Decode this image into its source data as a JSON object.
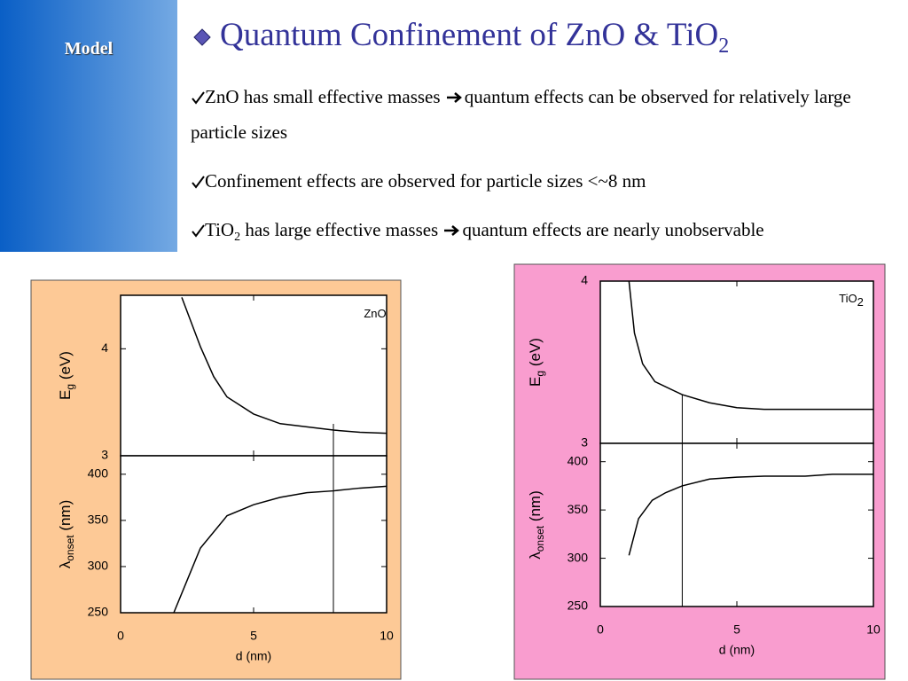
{
  "sidebar": {
    "label": "Model"
  },
  "header": {
    "title": "Quantum Confinement of ZnO & TiO",
    "title_sub": "2"
  },
  "bullets": [
    {
      "parts": [
        "ZnO has small effective masses",
        "quantum effects can be observed for relatively large particle sizes"
      ]
    },
    {
      "parts": [
        "Confinement effects are observed for particle sizes <~8 nm"
      ]
    },
    {
      "parts": [
        "TiO",
        "2",
        " has large effective masses",
        "quantum effects are nearly unobservable"
      ]
    }
  ],
  "chart_data": [
    {
      "type": "line",
      "label": "ZnO",
      "ylabel": {
        "main": "E",
        "sub": "g",
        "unit": " (eV)"
      },
      "x": [
        2.3,
        3,
        3.5,
        4,
        5,
        6,
        7,
        8,
        9,
        10
      ],
      "values": [
        4.48,
        4.02,
        3.74,
        3.55,
        3.39,
        3.3,
        3.27,
        3.24,
        3.22,
        3.21
      ],
      "xlim": [
        0,
        10
      ],
      "ylim": [
        3,
        4.5
      ],
      "yticks": [
        3,
        4
      ],
      "color": "#000000"
    },
    {
      "type": "line",
      "ylabel": {
        "main": "λ",
        "sub": "onset",
        "unit": " (nm)"
      },
      "x": [
        2,
        2.5,
        3,
        4,
        5,
        6,
        7,
        8,
        9,
        10
      ],
      "values": [
        250,
        285,
        320,
        355,
        367,
        375,
        380,
        382,
        385,
        387
      ],
      "xlim": [
        0,
        10
      ],
      "ylim": [
        250,
        420
      ],
      "yticks": [
        250,
        300,
        350,
        400
      ],
      "xticks": [
        0,
        5,
        10
      ],
      "xlabel": "d (nm)",
      "vline": 8,
      "color": "#000000"
    },
    {
      "type": "line",
      "label": "TiO",
      "label_sub": "2",
      "ylabel": {
        "main": "E",
        "sub": "g",
        "unit": " (eV)"
      },
      "x": [
        1.05,
        1.25,
        1.55,
        2,
        3,
        4,
        5,
        6,
        7.5,
        10
      ],
      "values": [
        4.0,
        3.68,
        3.49,
        3.38,
        3.3,
        3.25,
        3.22,
        3.21,
        3.21,
        3.21
      ],
      "xlim": [
        0,
        10
      ],
      "ylim": [
        3,
        4
      ],
      "yticks": [
        3,
        4
      ],
      "color": "#000000"
    },
    {
      "type": "line",
      "ylabel": {
        "main": "λ",
        "sub": "onset",
        "unit": " (nm)"
      },
      "x": [
        1.05,
        1.4,
        1.9,
        2.4,
        3,
        4,
        5,
        6,
        7.5,
        8.5,
        10
      ],
      "values": [
        303,
        341,
        360,
        368,
        375,
        382,
        384,
        385,
        385,
        387,
        387
      ],
      "xlim": [
        0,
        10
      ],
      "ylim": [
        250,
        419
      ],
      "yticks": [
        250,
        300,
        350,
        400
      ],
      "xticks": [
        0,
        5,
        10
      ],
      "xlabel": "d (nm)",
      "vline": 3,
      "color": "#000000"
    }
  ]
}
